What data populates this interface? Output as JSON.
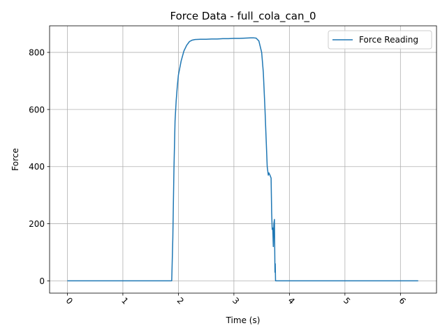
{
  "chart_data": {
    "type": "line",
    "title": "Force Data - full_cola_can_0",
    "xlabel": "Time (s)",
    "ylabel": "Force",
    "xlim": [
      -0.32,
      6.65
    ],
    "ylim": [
      -43,
      893
    ],
    "xticks": [
      0,
      1,
      2,
      3,
      4,
      5,
      6
    ],
    "yticks": [
      0,
      200,
      400,
      600,
      800
    ],
    "grid": true,
    "legend_position": "upper right",
    "series": [
      {
        "name": "Force Reading",
        "color": "#1f77b4",
        "x": [
          0,
          0.5,
          1.0,
          1.5,
          1.88,
          1.9,
          1.92,
          1.94,
          1.96,
          1.98,
          2.0,
          2.05,
          2.1,
          2.15,
          2.2,
          2.25,
          2.3,
          2.4,
          2.5,
          2.6,
          2.7,
          2.8,
          2.9,
          3.0,
          3.1,
          3.2,
          3.3,
          3.35,
          3.4,
          3.45,
          3.5,
          3.53,
          3.56,
          3.58,
          3.6,
          3.61,
          3.62,
          3.63,
          3.65,
          3.67,
          3.68,
          3.69,
          3.7,
          3.71,
          3.72,
          3.73,
          3.74,
          3.745,
          3.75,
          3.76,
          3.77,
          3.8,
          4.0,
          4.5,
          5.0,
          5.5,
          6.0,
          6.32
        ],
        "y": [
          0,
          0,
          0,
          0,
          0,
          150,
          390,
          560,
          630,
          680,
          720,
          770,
          805,
          825,
          838,
          843,
          845,
          846,
          846,
          847,
          847,
          848,
          848,
          849,
          849,
          850,
          851,
          851,
          850,
          840,
          800,
          730,
          600,
          500,
          400,
          385,
          370,
          378,
          370,
          360,
          240,
          180,
          185,
          120,
          200,
          215,
          30,
          60,
          0,
          0,
          0,
          0,
          0,
          0,
          0,
          0,
          0,
          0
        ]
      }
    ]
  }
}
